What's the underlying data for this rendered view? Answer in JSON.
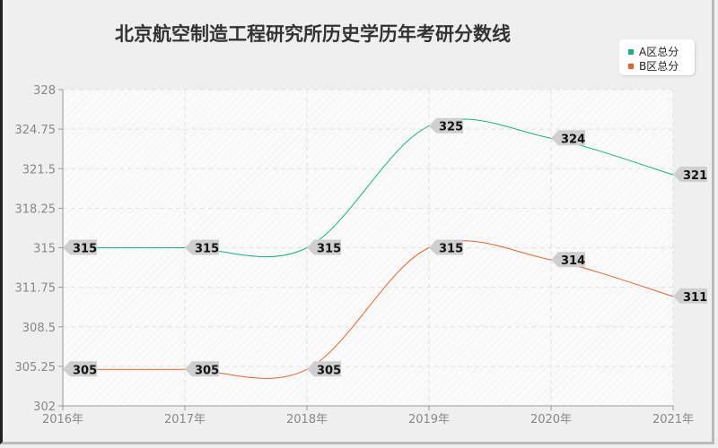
{
  "chart_data": {
    "type": "line",
    "title": "北京航空制造工程研究所历史学历年考研分数线",
    "categories": [
      "2016年",
      "2017年",
      "2018年",
      "2019年",
      "2020年",
      "2021年"
    ],
    "ylim": [
      302,
      328
    ],
    "yticks": [
      "302",
      "305.25",
      "308.5",
      "311.75",
      "315",
      "318.25",
      "321.5",
      "324.75",
      "328"
    ],
    "grid": true,
    "legend_position": "top-right",
    "series": [
      {
        "name": "A区总分",
        "color": "#1aaf85",
        "values": [
          315,
          315,
          315,
          325,
          324,
          321
        ]
      },
      {
        "name": "B区总分",
        "color": "#e0642f",
        "values": [
          305,
          305,
          305,
          315,
          314,
          311
        ]
      }
    ]
  }
}
